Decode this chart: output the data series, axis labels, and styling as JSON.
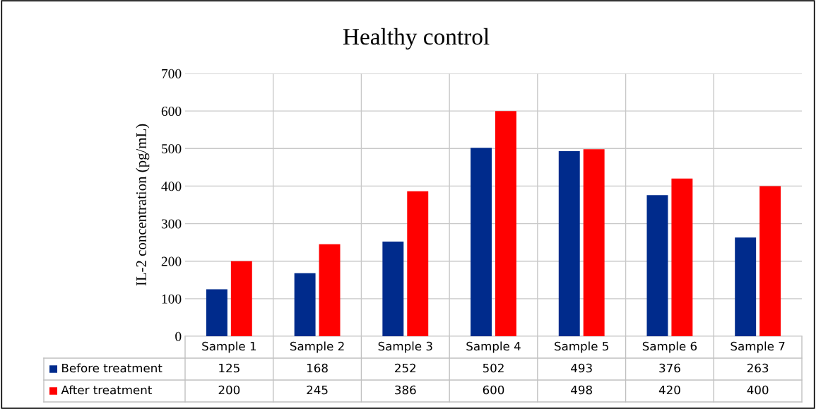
{
  "chart_data": {
    "type": "bar",
    "title": "Healthy control",
    "ylabel": "IL-2 concentration (pg/mL)",
    "categories": [
      "Sample 1",
      "Sample 2",
      "Sample 3",
      "Sample 4",
      "Sample 5",
      "Sample 6",
      "Sample 7"
    ],
    "series": [
      {
        "name": "Before treatment",
        "color": "#002b8c",
        "values": [
          125,
          168,
          252,
          502,
          493,
          376,
          263
        ]
      },
      {
        "name": "After treatment",
        "color": "#ff0000",
        "values": [
          200,
          245,
          386,
          600,
          498,
          420,
          400
        ]
      }
    ],
    "ylim": [
      0,
      700
    ],
    "yticks": [
      0,
      100,
      200,
      300,
      400,
      500,
      600,
      700
    ],
    "grid": true,
    "data_labels": true,
    "legend": "bottom"
  }
}
